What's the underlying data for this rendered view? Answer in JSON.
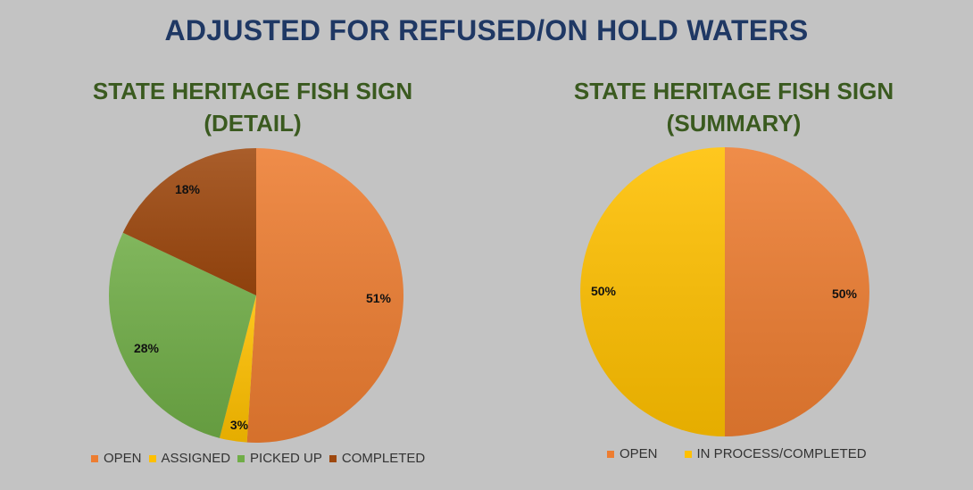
{
  "title": "ADJUSTED FOR REFUSED/ON HOLD WATERS",
  "chart_data": [
    {
      "type": "pie",
      "title_line1": "STATE HERITAGE FISH SIGN",
      "title_line2": "(DETAIL)",
      "legend": "bottom",
      "slices": [
        {
          "name": "OPEN",
          "value": 51,
          "label": "51%",
          "color": "#ed7d31"
        },
        {
          "name": "ASSIGNED",
          "value": 3,
          "label": "3%",
          "color": "#ffc000"
        },
        {
          "name": "PICKED UP",
          "value": 28,
          "label": "28%",
          "color": "#70ad47"
        },
        {
          "name": "COMPLETED",
          "value": 18,
          "label": "18%",
          "color": "#9e480e"
        }
      ]
    },
    {
      "type": "pie",
      "title_line1": "STATE HERITAGE FISH SIGN",
      "title_line2": "(SUMMARY)",
      "legend": "bottom",
      "slices": [
        {
          "name": "OPEN",
          "value": 50,
          "label": "50%",
          "color": "#ed7d31"
        },
        {
          "name": "IN PROCESS/COMPLETED",
          "value": 50,
          "label": "50%",
          "color": "#ffc000"
        }
      ]
    }
  ]
}
